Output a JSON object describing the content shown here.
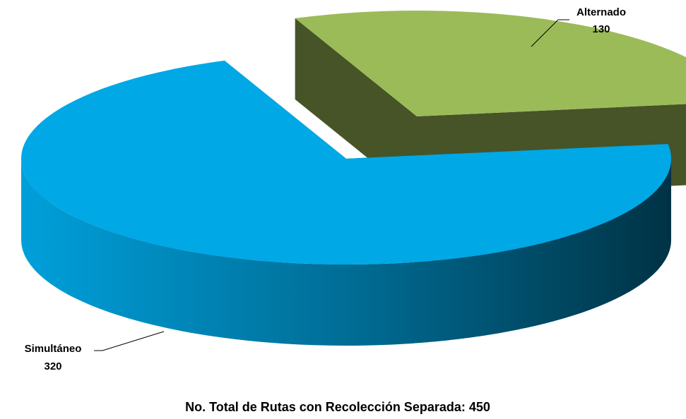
{
  "chart_data": {
    "type": "pie",
    "title": "No. Total de Rutas con Recolección Separada: 450",
    "categories": [
      "Alternado",
      "Simultáneo"
    ],
    "values": [
      130,
      320
    ],
    "colors": [
      "#9bbb59",
      "#00a8e6"
    ]
  }
}
